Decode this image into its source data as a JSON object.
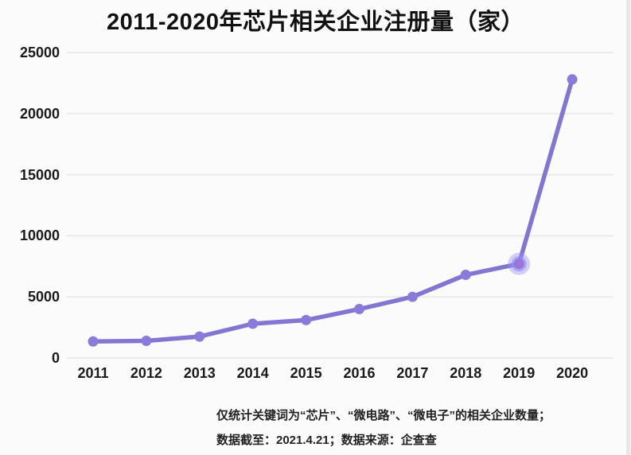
{
  "chart_data": {
    "type": "line",
    "title": "2011-2020年芯片相关企业注册量（家）",
    "categories": [
      "2011",
      "2012",
      "2013",
      "2014",
      "2015",
      "2016",
      "2017",
      "2018",
      "2019",
      "2020"
    ],
    "values": [
      1350,
      1400,
      1750,
      2800,
      3100,
      4000,
      5000,
      6800,
      7700,
      22800
    ],
    "xlabel": "",
    "ylabel": "",
    "ylim": [
      0,
      25000
    ],
    "yticks": [
      0,
      5000,
      10000,
      15000,
      20000,
      25000
    ],
    "grid": true,
    "legend_position": "none",
    "highlighted_point": {
      "category": "2019",
      "index": 8,
      "value": 7700
    },
    "colors": {
      "line": "#8276d3",
      "point": "#8a7bdb",
      "highlight_halo": "#9c8cf0",
      "highlight_core": "#a572d6",
      "gridline": "#ebebeb",
      "text": "#1a1a1a"
    }
  },
  "footnote": {
    "line1": "仅统计关键词为“芯片”、“微电路”、“微电子”的相关企业数量；",
    "line2": "数据截至：2021.4.21；数据来源：企查查"
  }
}
